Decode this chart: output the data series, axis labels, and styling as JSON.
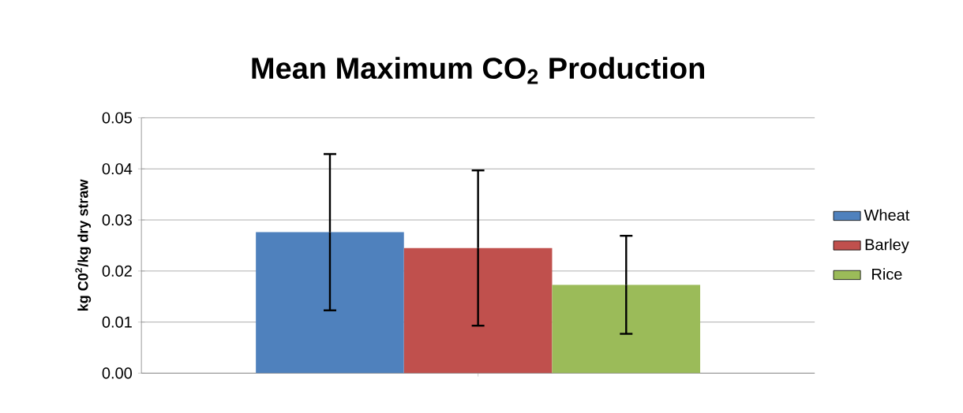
{
  "chart_data": {
    "type": "bar",
    "title": "Mean Maximum CO$_{2}$ Production",
    "ylabel": "kg C0$^{2}$/kg dry straw",
    "categories": [
      null
    ],
    "series": [
      {
        "name": "Wheat",
        "color": "#4f81bd",
        "values": [
          0.0276
        ],
        "errors": [
          0.0153
        ]
      },
      {
        "name": "Barley",
        "color": "#c0504d",
        "values": [
          0.0245
        ],
        "errors": [
          0.0152
        ]
      },
      {
        "name": "Rice",
        "color": "#9bbb59",
        "values": [
          0.0173
        ],
        "errors": [
          0.0096
        ]
      }
    ],
    "ylim": [
      0,
      0.05
    ],
    "yticks": [
      {
        "value": 0,
        "label": "0.00"
      },
      {
        "value": 0.01,
        "label": "0.01"
      },
      {
        "value": 0.02,
        "label": "0.02"
      },
      {
        "value": 0.03,
        "label": "0.03"
      },
      {
        "value": 0.04,
        "label": "0.04"
      },
      {
        "value": 0.05,
        "label": "0.05"
      }
    ],
    "grid": "y",
    "legend": "right"
  }
}
